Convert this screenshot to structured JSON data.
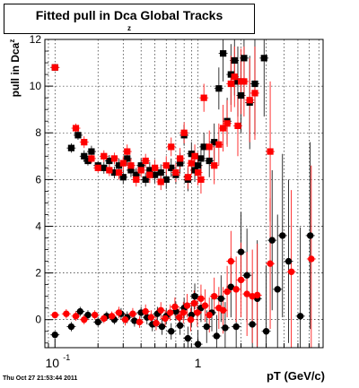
{
  "title": {
    "main": "Fitted pull in Dca Global Tracks",
    "sub": "z"
  },
  "axes": {
    "ylabel_main": "pull in Dca",
    "ylabel_sub": "z",
    "xlabel": "pT (GeV/c)"
  },
  "timestamp": "Thu Oct 27 21:53:44 2011",
  "chart_data": {
    "type": "scatter",
    "x_scale": "log",
    "xlim": [
      0.085,
      7.5
    ],
    "ylim": [
      -1.2,
      12
    ],
    "y_ticks": [
      0,
      2,
      4,
      6,
      8,
      10,
      12
    ],
    "x_major_ticks": [
      0.1,
      1
    ],
    "x_tick_labels": [
      "10",
      "1"
    ],
    "x_tick_label_exponents": [
      "-1",
      ""
    ],
    "grid": true,
    "legend": "none",
    "series": [
      {
        "marker": "square",
        "color": "#000000",
        "points": [
          [
            0.1,
            10.8,
            0.15
          ],
          [
            0.13,
            7.35,
            0.2
          ],
          [
            0.145,
            7.9,
            0.2
          ],
          [
            0.16,
            7.0,
            0.25
          ],
          [
            0.17,
            6.8,
            0.2
          ],
          [
            0.18,
            7.2,
            0.25
          ],
          [
            0.2,
            6.6,
            0.2
          ],
          [
            0.22,
            6.5,
            0.25
          ],
          [
            0.24,
            6.8,
            0.25
          ],
          [
            0.26,
            6.3,
            0.25
          ],
          [
            0.28,
            6.6,
            0.3
          ],
          [
            0.3,
            6.1,
            0.3
          ],
          [
            0.32,
            6.9,
            0.3
          ],
          [
            0.34,
            6.4,
            0.3
          ],
          [
            0.37,
            6.2,
            0.3
          ],
          [
            0.4,
            6.6,
            0.3
          ],
          [
            0.43,
            6.0,
            0.3
          ],
          [
            0.46,
            6.4,
            0.35
          ],
          [
            0.5,
            6.2,
            0.35
          ],
          [
            0.55,
            6.3,
            0.35
          ],
          [
            0.6,
            6.0,
            0.4
          ],
          [
            0.65,
            6.5,
            0.4
          ],
          [
            0.7,
            6.2,
            0.4
          ],
          [
            0.75,
            6.7,
            0.45
          ],
          [
            0.8,
            7.9,
            0.45
          ],
          [
            0.85,
            6.0,
            0.5
          ],
          [
            0.9,
            7.1,
            0.5
          ],
          [
            0.95,
            6.4,
            0.5
          ],
          [
            1.0,
            6.6,
            0.55
          ],
          [
            1.05,
            6.9,
            0.6
          ],
          [
            1.1,
            7.4,
            0.6
          ],
          [
            1.2,
            6.8,
            0.7
          ],
          [
            1.3,
            7.6,
            0.8
          ],
          [
            1.4,
            9.9,
            0.9
          ],
          [
            1.5,
            11.4,
            1.2
          ],
          [
            1.6,
            8.5,
            1.0
          ],
          [
            1.7,
            10.5,
            1.3
          ],
          [
            1.8,
            11.1,
            1.5
          ],
          [
            1.9,
            10.2,
            1.5
          ],
          [
            2.0,
            9.6,
            1.6
          ],
          [
            2.1,
            11.2,
            1.8
          ],
          [
            2.3,
            9.3,
            2.0
          ],
          [
            2.5,
            10.1,
            2.2
          ],
          [
            2.9,
            11.2,
            2.5
          ]
        ]
      },
      {
        "marker": "square",
        "color": "#ff0000",
        "points": [
          [
            0.1,
            10.8,
            0.15
          ],
          [
            0.14,
            8.2,
            0.2
          ],
          [
            0.16,
            7.6,
            0.25
          ],
          [
            0.18,
            6.9,
            0.2
          ],
          [
            0.2,
            6.5,
            0.2
          ],
          [
            0.22,
            7.0,
            0.25
          ],
          [
            0.24,
            6.4,
            0.25
          ],
          [
            0.26,
            6.9,
            0.25
          ],
          [
            0.28,
            6.3,
            0.3
          ],
          [
            0.3,
            6.7,
            0.3
          ],
          [
            0.32,
            7.2,
            0.3
          ],
          [
            0.34,
            6.6,
            0.3
          ],
          [
            0.37,
            6.0,
            0.3
          ],
          [
            0.4,
            6.4,
            0.3
          ],
          [
            0.43,
            6.8,
            0.3
          ],
          [
            0.46,
            6.2,
            0.35
          ],
          [
            0.5,
            6.5,
            0.35
          ],
          [
            0.55,
            5.9,
            0.35
          ],
          [
            0.6,
            6.6,
            0.4
          ],
          [
            0.65,
            7.4,
            0.4
          ],
          [
            0.7,
            6.3,
            0.4
          ],
          [
            0.75,
            6.9,
            0.45
          ],
          [
            0.8,
            8.0,
            0.45
          ],
          [
            0.85,
            6.1,
            0.5
          ],
          [
            0.9,
            6.7,
            0.5
          ],
          [
            0.95,
            7.0,
            0.5
          ],
          [
            1.0,
            6.3,
            0.55
          ],
          [
            1.05,
            6.0,
            0.6
          ],
          [
            1.1,
            9.5,
            0.6
          ],
          [
            1.2,
            7.4,
            0.7
          ],
          [
            1.3,
            6.6,
            0.8
          ],
          [
            1.4,
            7.5,
            0.9
          ],
          [
            1.5,
            8.2,
            1.0
          ],
          [
            1.6,
            8.4,
            1.0
          ],
          [
            1.7,
            10.1,
            1.2
          ],
          [
            1.8,
            10.4,
            1.3
          ],
          [
            1.9,
            8.3,
            1.3
          ],
          [
            2.0,
            10.2,
            1.4
          ],
          [
            2.1,
            10.2,
            1.5
          ],
          [
            2.3,
            9.4,
            1.8
          ],
          [
            2.5,
            9.7,
            2.0
          ],
          [
            3.2,
            7.2,
            3.0
          ]
        ]
      },
      {
        "marker": "circle",
        "color": "#000000",
        "points": [
          [
            0.1,
            -0.65,
            0.15
          ],
          [
            0.13,
            -0.3,
            0.2
          ],
          [
            0.15,
            0.35,
            0.2
          ],
          [
            0.17,
            0.2,
            0.2
          ],
          [
            0.2,
            -0.1,
            0.2
          ],
          [
            0.23,
            0.15,
            0.2
          ],
          [
            0.26,
            0.0,
            0.2
          ],
          [
            0.29,
            0.25,
            0.25
          ],
          [
            0.32,
            0.1,
            0.25
          ],
          [
            0.36,
            -0.05,
            0.25
          ],
          [
            0.4,
            0.3,
            0.25
          ],
          [
            0.44,
            0.1,
            0.3
          ],
          [
            0.48,
            -0.2,
            0.3
          ],
          [
            0.52,
            0.25,
            0.3
          ],
          [
            0.56,
            -0.3,
            0.35
          ],
          [
            0.6,
            0.15,
            0.35
          ],
          [
            0.65,
            -0.5,
            0.35
          ],
          [
            0.7,
            0.35,
            0.4
          ],
          [
            0.75,
            -0.25,
            0.4
          ],
          [
            0.8,
            0.5,
            0.45
          ],
          [
            0.85,
            -0.8,
            0.5
          ],
          [
            0.9,
            0.2,
            0.5
          ],
          [
            0.95,
            1.0,
            0.55
          ],
          [
            1.0,
            -1.05,
            0.6
          ],
          [
            1.05,
            0.5,
            0.6
          ],
          [
            1.15,
            -0.3,
            0.7
          ],
          [
            1.25,
            0.3,
            0.8
          ],
          [
            1.35,
            -0.7,
            0.9
          ],
          [
            1.45,
            0.9,
            1.0
          ],
          [
            1.55,
            -0.35,
            1.1
          ],
          [
            1.7,
            1.4,
            1.3
          ],
          [
            1.85,
            -0.3,
            1.5
          ],
          [
            2.0,
            2.9,
            1.7
          ],
          [
            2.2,
            1.9,
            2.0
          ],
          [
            2.4,
            -0.2,
            2.2
          ],
          [
            2.6,
            0.9,
            2.5
          ],
          [
            3.0,
            -0.5,
            2.8
          ],
          [
            3.3,
            3.4,
            3.0
          ],
          [
            3.6,
            1.3,
            3.2
          ],
          [
            3.9,
            3.6,
            3.5
          ],
          [
            4.3,
            2.5,
            3.5
          ],
          [
            5.2,
            0.15,
            3.8
          ],
          [
            6.1,
            3.6,
            4.0
          ]
        ]
      },
      {
        "marker": "circle",
        "color": "#ff0000",
        "points": [
          [
            0.1,
            0.2,
            0.15
          ],
          [
            0.12,
            0.25,
            0.2
          ],
          [
            0.14,
            0.15,
            0.2
          ],
          [
            0.16,
            0.0,
            0.2
          ],
          [
            0.19,
            0.2,
            0.2
          ],
          [
            0.22,
            0.05,
            0.2
          ],
          [
            0.25,
            0.15,
            0.2
          ],
          [
            0.28,
            0.3,
            0.25
          ],
          [
            0.31,
            0.0,
            0.25
          ],
          [
            0.35,
            0.25,
            0.25
          ],
          [
            0.39,
            -0.1,
            0.25
          ],
          [
            0.43,
            0.35,
            0.3
          ],
          [
            0.47,
            0.1,
            0.3
          ],
          [
            0.51,
            -0.15,
            0.3
          ],
          [
            0.55,
            0.4,
            0.35
          ],
          [
            0.59,
            0.05,
            0.35
          ],
          [
            0.64,
            0.3,
            0.35
          ],
          [
            0.69,
            0.55,
            0.4
          ],
          [
            0.74,
            0.1,
            0.4
          ],
          [
            0.79,
            0.3,
            0.45
          ],
          [
            0.84,
            0.6,
            0.5
          ],
          [
            0.89,
            0.0,
            0.5
          ],
          [
            0.94,
            0.7,
            0.55
          ],
          [
            0.99,
            0.3,
            0.6
          ],
          [
            1.05,
            0.9,
            0.6
          ],
          [
            1.12,
            0.6,
            0.7
          ],
          [
            1.2,
            0.2,
            0.75
          ],
          [
            1.3,
            1.0,
            0.8
          ],
          [
            1.4,
            0.5,
            0.9
          ],
          [
            1.5,
            0.4,
            1.0
          ],
          [
            1.6,
            1.2,
            1.1
          ],
          [
            1.7,
            2.5,
            1.3
          ],
          [
            1.85,
            1.3,
            1.4
          ],
          [
            2.0,
            1.7,
            1.6
          ],
          [
            2.2,
            1.1,
            1.8
          ],
          [
            2.4,
            1.0,
            2.0
          ],
          [
            2.6,
            1.05,
            2.2
          ],
          [
            3.2,
            2.4,
            2.8
          ],
          [
            4.5,
            2.05,
            3.5
          ],
          [
            6.2,
            2.6,
            4.0
          ]
        ]
      }
    ]
  }
}
